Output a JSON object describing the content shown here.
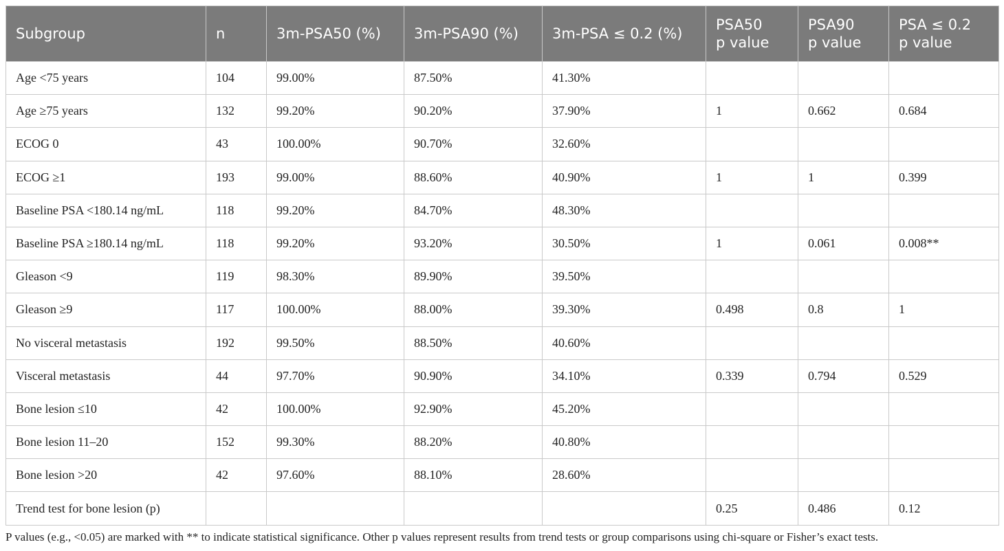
{
  "table": {
    "header": [
      "Subgroup",
      "n",
      "3m-PSA50 (%)",
      "3m-PSA90 (%)",
      "3m-PSA ≤ 0.2 (%)",
      "PSA50\np value",
      "PSA90\np value",
      "PSA ≤ 0.2\np value"
    ],
    "rows": [
      [
        "Age <75 years",
        "104",
        "99.00%",
        "87.50%",
        "41.30%",
        null,
        null,
        null
      ],
      [
        "Age ≥75 years",
        "132",
        "99.20%",
        "90.20%",
        "37.90%",
        "1",
        "0.662",
        "0.684"
      ],
      [
        "ECOG 0",
        "43",
        "100.00%",
        "90.70%",
        "32.60%",
        null,
        null,
        null
      ],
      [
        "ECOG ≥1",
        "193",
        "99.00%",
        "88.60%",
        "40.90%",
        "1",
        "1",
        "0.399"
      ],
      [
        "Baseline PSA <180.14 ng/mL",
        "118",
        "99.20%",
        "84.70%",
        "48.30%",
        null,
        null,
        null
      ],
      [
        "Baseline PSA ≥180.14 ng/mL",
        "118",
        "99.20%",
        "93.20%",
        "30.50%",
        "1",
        "0.061",
        "0.008**"
      ],
      [
        "Gleason <9",
        "119",
        "98.30%",
        "89.90%",
        "39.50%",
        null,
        null,
        null
      ],
      [
        "Gleason ≥9",
        "117",
        "100.00%",
        "88.00%",
        "39.30%",
        "0.498",
        "0.8",
        "1"
      ],
      [
        "No visceral metastasis",
        "192",
        "99.50%",
        "88.50%",
        "40.60%",
        null,
        null,
        null
      ],
      [
        "Visceral metastasis",
        "44",
        "97.70%",
        "90.90%",
        "34.10%",
        "0.339",
        "0.794",
        "0.529"
      ],
      [
        "Bone lesion ≤10",
        "42",
        "100.00%",
        "92.90%",
        "45.20%",
        null,
        null,
        null
      ],
      [
        "Bone lesion 11–20",
        "152",
        "99.30%",
        "88.20%",
        "40.80%",
        null,
        null,
        null
      ],
      [
        "Bone lesion >20",
        "42",
        "97.60%",
        "88.10%",
        "28.60%",
        null,
        null,
        null
      ],
      [
        "Trend test for bone lesion (p)",
        null,
        null,
        null,
        null,
        "0.25",
        "0.486",
        "0.12"
      ]
    ]
  },
  "footnote": "P values (e.g., <0.05) are marked with ** to indicate statistical significance. Other p values represent results from trend tests or group comparisons using chi-square or Fisher’s exact tests."
}
